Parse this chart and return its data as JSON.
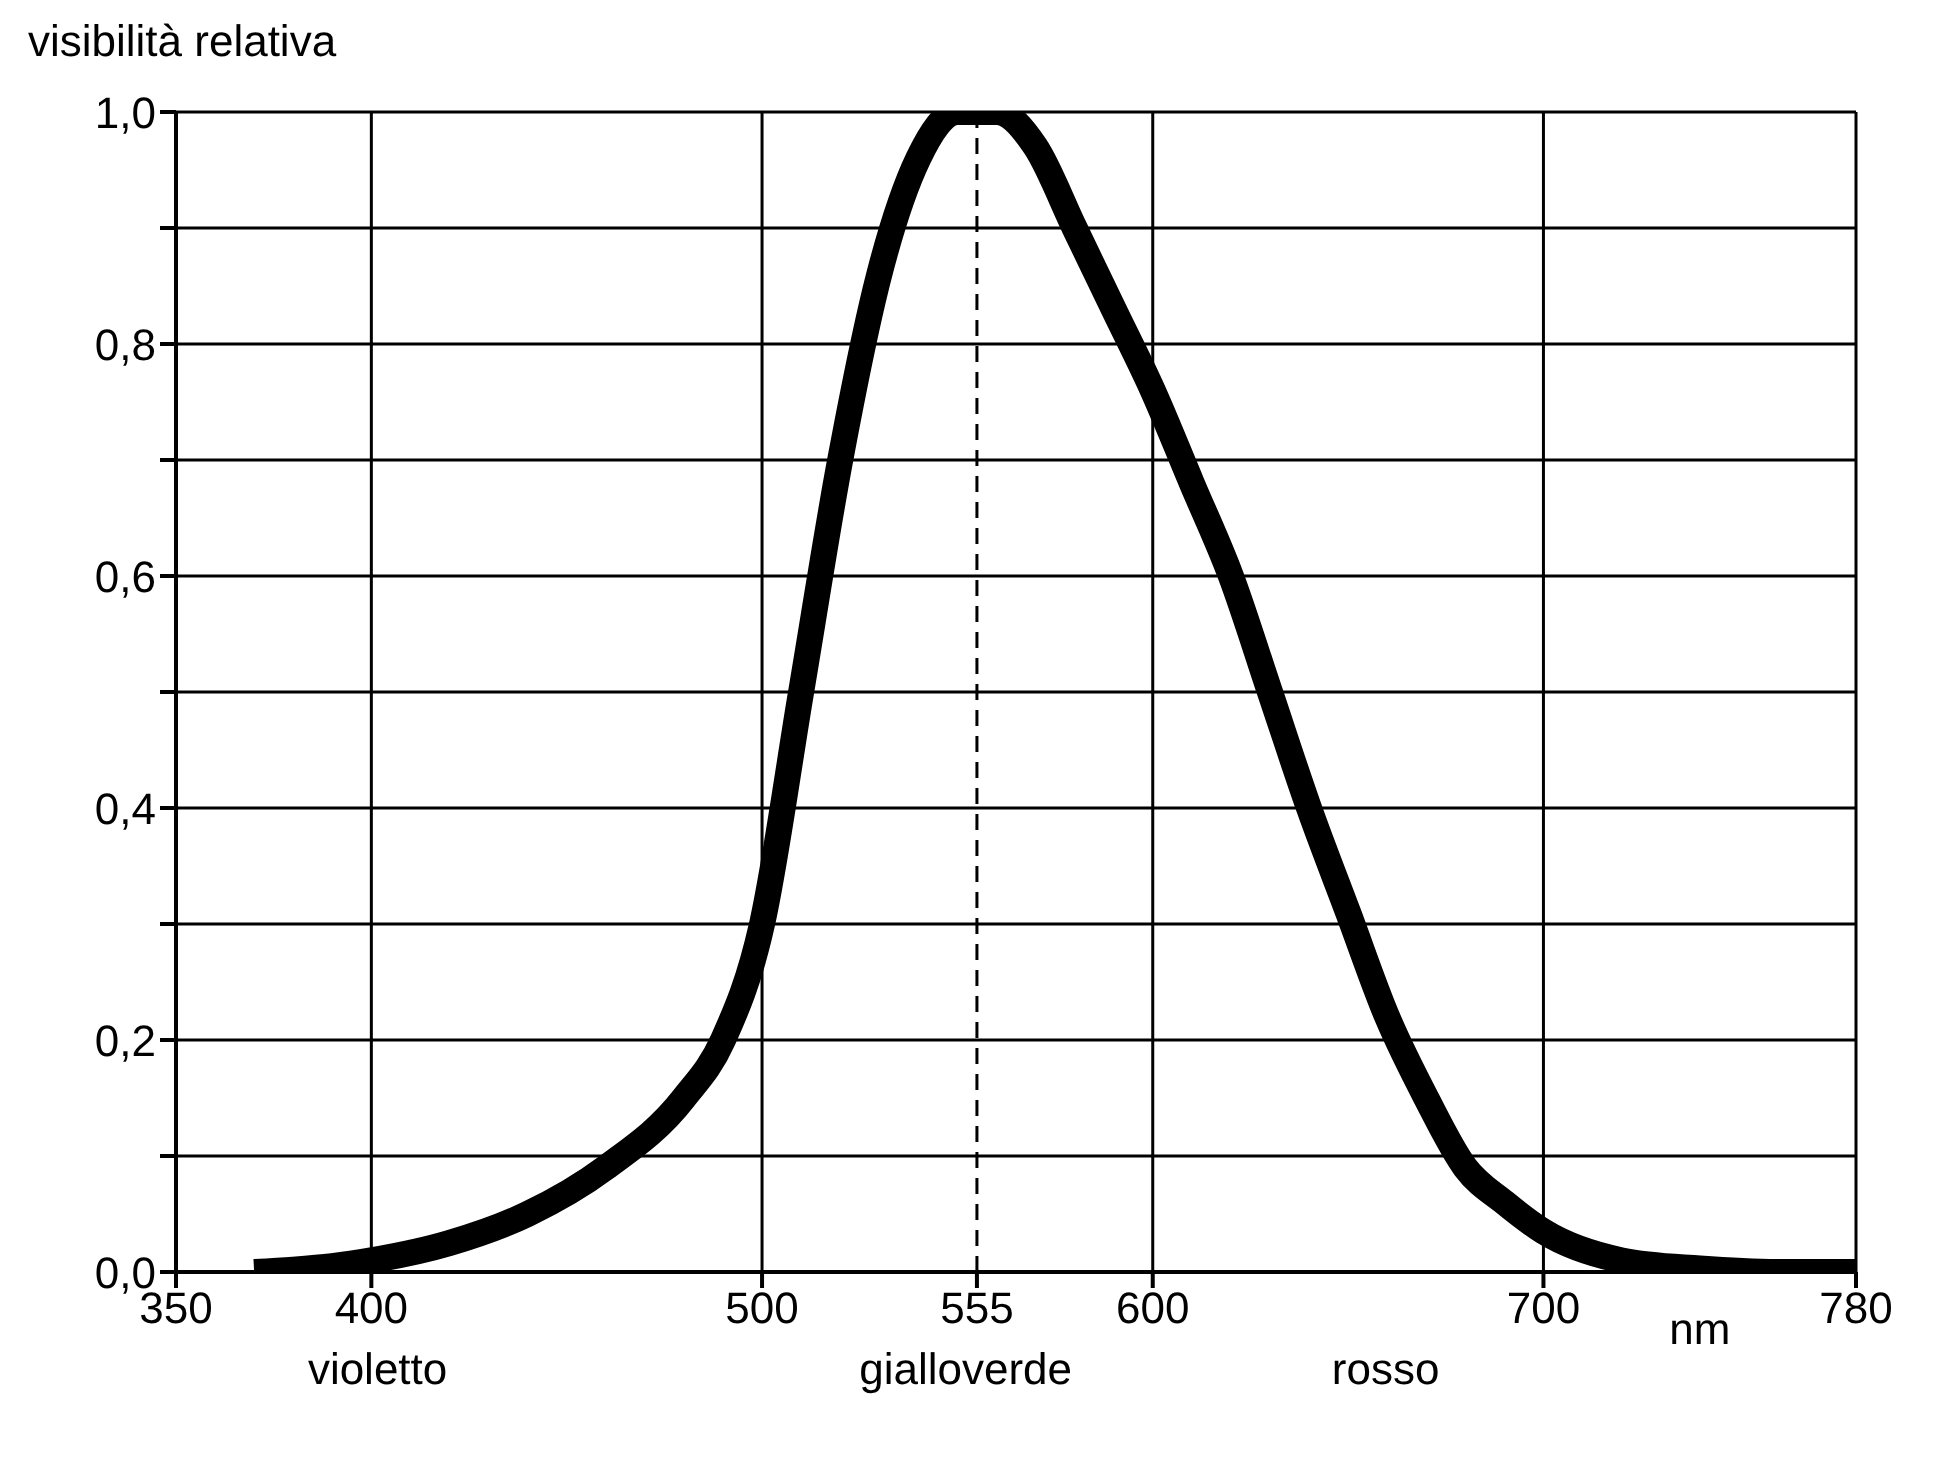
{
  "chart_data": {
    "type": "line",
    "ylabel": "visibilità relativa",
    "xlabel": "nm",
    "x": [
      370,
      380,
      390,
      400,
      420,
      440,
      460,
      480,
      490,
      500,
      510,
      520,
      530,
      540,
      550,
      555,
      560,
      570,
      580,
      590,
      600,
      610,
      620,
      630,
      640,
      650,
      660,
      670,
      680,
      690,
      700,
      720,
      740,
      760,
      780
    ],
    "series": [
      {
        "color": "#000000",
        "values": [
          0,
          0.002,
          0.005,
          0.01,
          0.025,
          0.05,
          0.09,
          0.15,
          0.2,
          0.3,
          0.5,
          0.7,
          0.86,
          0.96,
          1.0,
          1.0,
          1.0,
          0.97,
          0.9,
          0.83,
          0.76,
          0.68,
          0.6,
          0.5,
          0.4,
          0.31,
          0.22,
          0.15,
          0.09,
          0.06,
          0.035,
          0.01,
          0.003,
          0,
          0
        ]
      }
    ],
    "xlim": [
      350,
      780
    ],
    "xticks": [
      350,
      400,
      500,
      555,
      600,
      700,
      780
    ],
    "ylim": [
      0,
      1
    ],
    "yticks": [
      {
        "value": 0,
        "label": "0,0"
      },
      {
        "value": 0.1,
        "label": null
      },
      {
        "value": 0.2,
        "label": "0,2"
      },
      {
        "value": 0.3,
        "label": null
      },
      {
        "value": 0.4,
        "label": "0,4"
      },
      {
        "value": 0.5,
        "label": null
      },
      {
        "value": 0.6,
        "label": "0,6"
      },
      {
        "value": 0.7,
        "label": null
      },
      {
        "value": 0.8,
        "label": "0,8"
      },
      {
        "value": 0.9,
        "label": null
      },
      {
        "value": 1,
        "label": "1,0"
      }
    ],
    "ref_lines": [
      {
        "axis": "x",
        "value": 555,
        "label": null,
        "color": "#000000",
        "line_style": "dashed"
      }
    ],
    "annotations": [
      "violetto",
      "gialloverde",
      "rosso"
    ],
    "grid": true,
    "marker": "none",
    "line_style": "solid",
    "legend": false
  }
}
